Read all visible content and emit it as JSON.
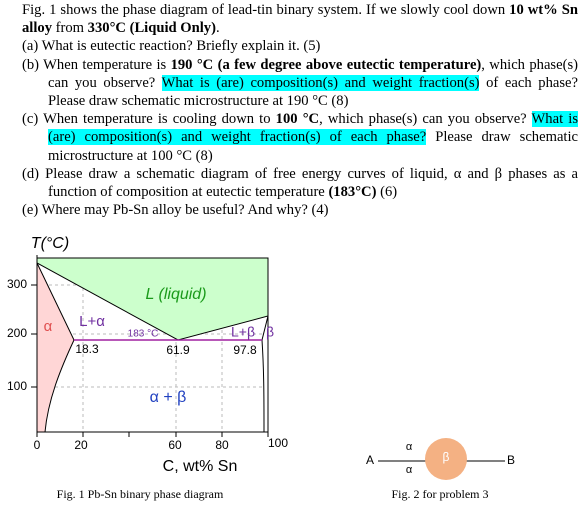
{
  "problem": {
    "intro": [
      "Fig. 1 shows the phase diagram of lead-tin binary system. If we slowly cool down ",
      "10 wt% Sn alloy",
      " from ",
      "330°C (Liquid Only)",
      "."
    ],
    "items": [
      {
        "label": "(a)",
        "parts": [
          "What is eutectic reaction? Briefly explain it. (5)"
        ]
      },
      {
        "label": "(b)",
        "parts": [
          "When temperature is ",
          "190 °C (a few degree above eutectic temperature)",
          ", which phase(s) can you observe? ",
          "What is (are) composition(s) and weight fraction(s)",
          " of each phase? Please draw schematic microstructure at 190 °C (8)"
        ]
      },
      {
        "label": "(c)",
        "parts": [
          "When temperature is cooling down to ",
          "100 °C",
          ", which phase(s) can you observe? ",
          "What is (are) composition(s) and weight fraction(s) of each phase?",
          " Please draw schematic microstructure at 100 °C (8)"
        ]
      },
      {
        "label": "(d)",
        "parts": [
          "Please draw a schematic diagram of free energy curves of liquid, α and β phases as a function of composition at eutectic temperature ",
          "(183°C)",
          " (6)"
        ]
      },
      {
        "label": "(e)",
        "parts": [
          "Where may Pb-Sn alloy be useful? And why? (4)"
        ]
      }
    ]
  },
  "figure1": {
    "y_axis_label": "T(°C)",
    "y_ticks": [
      "300",
      "200",
      "100"
    ],
    "x_ticks": [
      "0",
      "20",
      "60",
      "80",
      "100"
    ],
    "x_axis_label": "C, wt% Sn",
    "regions": {
      "liquid": "L (liquid)",
      "alpha": "α",
      "l_alpha": "L+α",
      "l_beta": "L+β",
      "beta": "β",
      "alpha_beta": "α + β"
    },
    "eutectic_temperature": "183 °C",
    "compositions": [
      "18.3",
      "61.9",
      "97.8"
    ],
    "caption": "Fig. 1 Pb-Sn binary phase diagram"
  },
  "figure2": {
    "left": "A",
    "right": "B",
    "top": "α",
    "bottom": "α",
    "center": "β",
    "caption": "Fig. 2 for problem 3"
  }
}
